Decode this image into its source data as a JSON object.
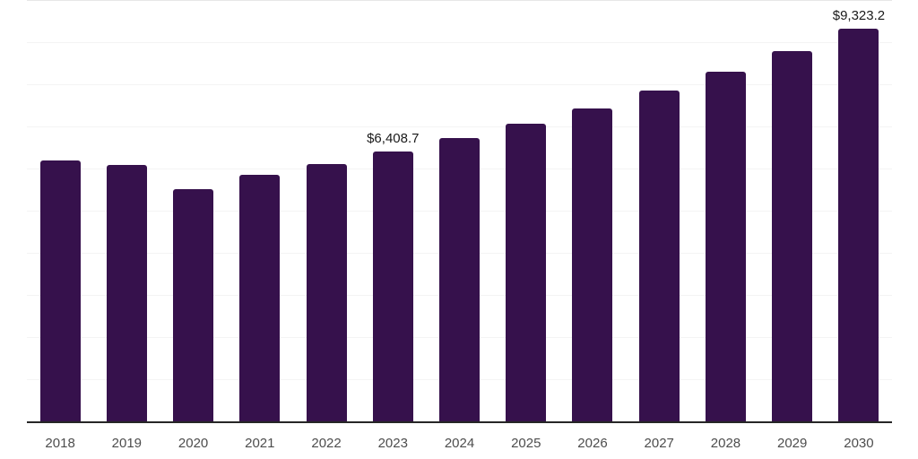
{
  "chart_data": {
    "type": "bar",
    "title": "",
    "xlabel": "",
    "ylabel": "",
    "categories": [
      "2018",
      "2019",
      "2020",
      "2021",
      "2022",
      "2023",
      "2024",
      "2025",
      "2026",
      "2027",
      "2028",
      "2029",
      "2030"
    ],
    "values": [
      6190,
      6085,
      5520,
      5855,
      6115,
      6408.7,
      6720,
      7060,
      7430,
      7845,
      8290,
      8795,
      9323.2
    ],
    "value_labels": [
      "",
      "",
      "",
      "",
      "",
      "$6,408.7",
      "",
      "",
      "",
      "",
      "",
      "",
      "$9,323.2"
    ],
    "ylim": [
      0,
      10000
    ],
    "gridline_step": 1000,
    "grid": true,
    "legend_position": "none",
    "colors": {
      "bar": "#36114C",
      "axis_line": "#262626",
      "gridline": "#f4f4f4",
      "gridline_top": "#e7e7e7",
      "tick_label": "#4d4d4d",
      "value_label": "#1a1a1a",
      "background": "#ffffff"
    }
  }
}
